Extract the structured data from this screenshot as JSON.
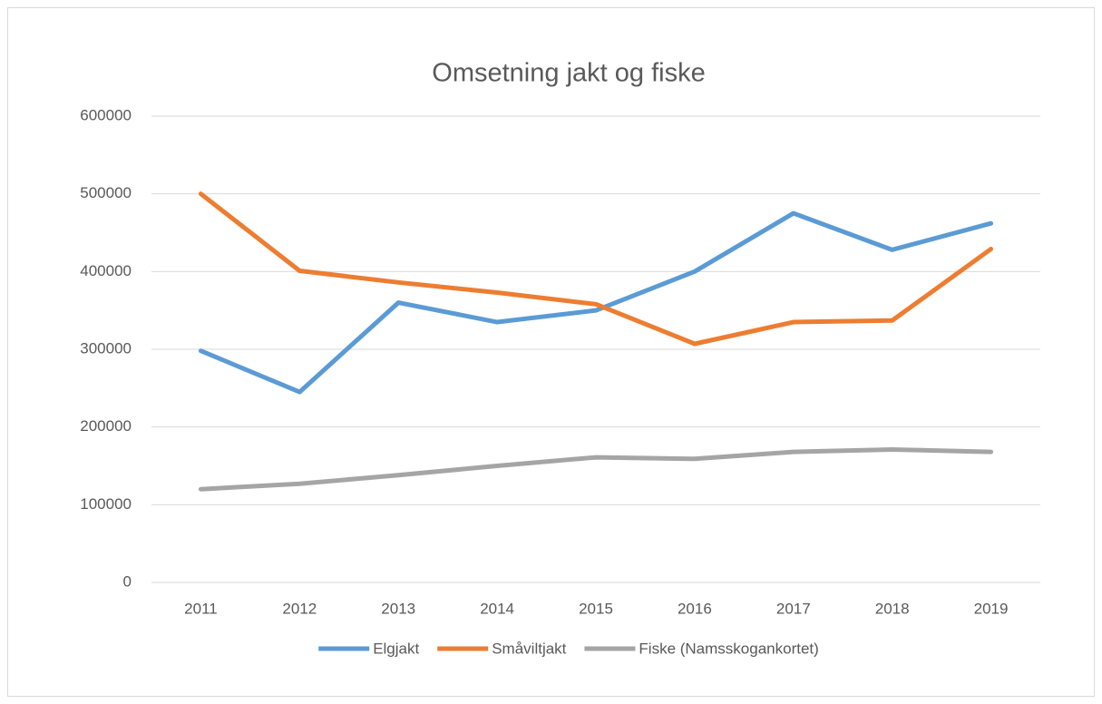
{
  "chart_data": {
    "type": "line",
    "title": "Omsetning jakt og fiske",
    "categories": [
      "2011",
      "2012",
      "2013",
      "2014",
      "2015",
      "2016",
      "2017",
      "2018",
      "2019"
    ],
    "series": [
      {
        "name": "Elgjakt",
        "color": "#5b9bd5",
        "values": [
          298000,
          245000,
          360000,
          335000,
          350000,
          400000,
          475000,
          428000,
          462000
        ]
      },
      {
        "name": "Småviltjakt",
        "color": "#ed7d31",
        "values": [
          500000,
          401000,
          386000,
          373000,
          358000,
          307000,
          335000,
          337000,
          429000
        ]
      },
      {
        "name": "Fiske (Namsskogankortet)",
        "color": "#a5a5a5",
        "values": [
          120000,
          127000,
          138000,
          150000,
          161000,
          159000,
          168000,
          171000,
          168000
        ]
      }
    ],
    "ylim": [
      0,
      600000
    ],
    "yticks": [
      0,
      100000,
      200000,
      300000,
      400000,
      500000,
      600000
    ],
    "grid": true,
    "legend": "bottom"
  }
}
